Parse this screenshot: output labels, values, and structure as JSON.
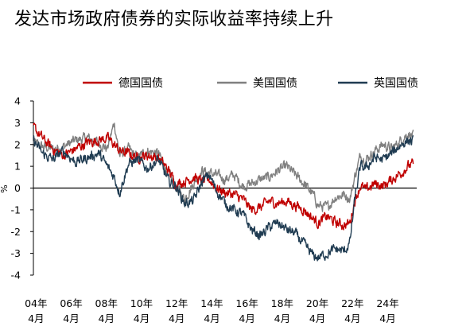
{
  "chart_data": {
    "type": "line",
    "title": "发达市场政府债券的实际收益率持续上升",
    "xlabel": "",
    "ylabel": "%",
    "ylim": [
      -4,
      4
    ],
    "yticks": [
      "4",
      "3",
      "2",
      "1",
      "0",
      "-1",
      "-2",
      "-3",
      "-4"
    ],
    "xtick_labels": [
      [
        "04年",
        "4月"
      ],
      [
        "06年",
        "4月"
      ],
      [
        "08年",
        "4月"
      ],
      [
        "10年",
        "4月"
      ],
      [
        "12年",
        "4月"
      ],
      [
        "14年",
        "4月"
      ],
      [
        "16年",
        "4月"
      ],
      [
        "18年",
        "4月"
      ],
      [
        "20年",
        "4月"
      ],
      [
        "22年",
        "4月"
      ],
      [
        "24年",
        "4月"
      ]
    ],
    "xtick_years": [
      2004.25,
      2006.25,
      2008.25,
      2010.25,
      2012.25,
      2014.25,
      2016.25,
      2018.25,
      2020.25,
      2022.25,
      2024.25
    ],
    "xlim": [
      2004.1,
      2025.9
    ],
    "legend_position": "top",
    "grid": false,
    "zero_line": true,
    "series": [
      {
        "name": "德国国债",
        "color": "#c00000",
        "x": [
          2004.1,
          2004.6,
          2005.2,
          2005.8,
          2006.5,
          2007.2,
          2007.8,
          2008.3,
          2008.7,
          2009.0,
          2009.5,
          2010.0,
          2010.6,
          2011.2,
          2011.8,
          2012.2,
          2012.7,
          2013.2,
          2013.7,
          2014.1,
          2014.5,
          2015.0,
          2015.5,
          2016.0,
          2016.5,
          2017.0,
          2017.5,
          2018.0,
          2018.5,
          2019.0,
          2019.5,
          2020.0,
          2020.3,
          2020.8,
          2021.3,
          2021.8,
          2022.1,
          2022.4,
          2022.7,
          2023.0,
          2023.5,
          2024.0,
          2024.5,
          2025.0,
          2025.4,
          2025.7
        ],
        "y": [
          2.8,
          2.3,
          1.8,
          1.5,
          1.8,
          2.1,
          2.2,
          2.3,
          2.0,
          1.7,
          1.6,
          1.4,
          1.5,
          1.4,
          0.8,
          0.2,
          0.3,
          0.5,
          0.3,
          0.4,
          0.0,
          -0.2,
          -0.3,
          -0.5,
          -1.0,
          -0.9,
          -0.6,
          -0.7,
          -0.6,
          -0.8,
          -1.0,
          -1.4,
          -1.6,
          -1.3,
          -1.6,
          -1.7,
          -1.6,
          -0.5,
          0.1,
          -0.1,
          0.2,
          0.1,
          0.4,
          0.7,
          1.0,
          1.1
        ]
      },
      {
        "name": "美国国债",
        "color": "#808080",
        "x": [
          2004.1,
          2004.6,
          2005.2,
          2005.8,
          2006.5,
          2007.2,
          2007.8,
          2008.3,
          2008.7,
          2009.0,
          2009.5,
          2010.0,
          2010.6,
          2011.2,
          2011.8,
          2012.2,
          2012.7,
          2013.2,
          2013.7,
          2014.1,
          2014.5,
          2015.0,
          2015.5,
          2016.0,
          2016.5,
          2017.0,
          2017.5,
          2018.0,
          2018.5,
          2019.0,
          2019.5,
          2020.0,
          2020.3,
          2020.8,
          2021.3,
          2021.8,
          2022.1,
          2022.4,
          2022.7,
          2023.0,
          2023.5,
          2024.0,
          2024.5,
          2025.0,
          2025.4,
          2025.7
        ],
        "y": [
          2.1,
          1.9,
          1.8,
          1.9,
          2.2,
          2.3,
          2.1,
          1.8,
          3.0,
          1.5,
          1.8,
          1.4,
          1.7,
          1.6,
          0.6,
          0.1,
          -0.5,
          0.2,
          0.8,
          0.7,
          0.6,
          0.4,
          0.6,
          0.1,
          0.2,
          0.4,
          0.5,
          0.8,
          1.0,
          0.6,
          0.2,
          -0.3,
          -0.8,
          -0.9,
          -0.4,
          -0.3,
          -0.5,
          0.6,
          1.5,
          1.3,
          1.7,
          2.0,
          1.8,
          2.2,
          2.5,
          2.4
        ]
      },
      {
        "name": "英国国债",
        "color": "#203c52",
        "x": [
          2004.1,
          2004.6,
          2005.2,
          2005.8,
          2006.5,
          2007.2,
          2007.8,
          2008.3,
          2008.7,
          2009.0,
          2009.5,
          2010.0,
          2010.6,
          2011.2,
          2011.8,
          2012.2,
          2012.7,
          2013.2,
          2013.7,
          2014.1,
          2014.5,
          2015.0,
          2015.5,
          2016.0,
          2016.5,
          2017.0,
          2017.5,
          2018.0,
          2018.5,
          2019.0,
          2019.5,
          2020.0,
          2020.3,
          2020.8,
          2021.3,
          2021.8,
          2022.1,
          2022.4,
          2022.7,
          2023.0,
          2023.5,
          2024.0,
          2024.5,
          2025.0,
          2025.4,
          2025.7
        ],
        "y": [
          2.2,
          1.6,
          1.3,
          1.7,
          1.2,
          1.4,
          1.6,
          1.0,
          0.5,
          -0.2,
          1.1,
          1.3,
          0.9,
          1.3,
          0.3,
          0.1,
          -0.7,
          -0.6,
          0.3,
          0.6,
          -0.1,
          -0.7,
          -1.0,
          -1.2,
          -1.9,
          -2.2,
          -1.8,
          -1.6,
          -1.9,
          -2.1,
          -2.6,
          -3.1,
          -3.2,
          -3.0,
          -2.8,
          -2.9,
          -2.5,
          -0.4,
          1.0,
          0.9,
          1.4,
          1.3,
          1.6,
          2.0,
          2.2,
          2.1
        ]
      }
    ]
  }
}
